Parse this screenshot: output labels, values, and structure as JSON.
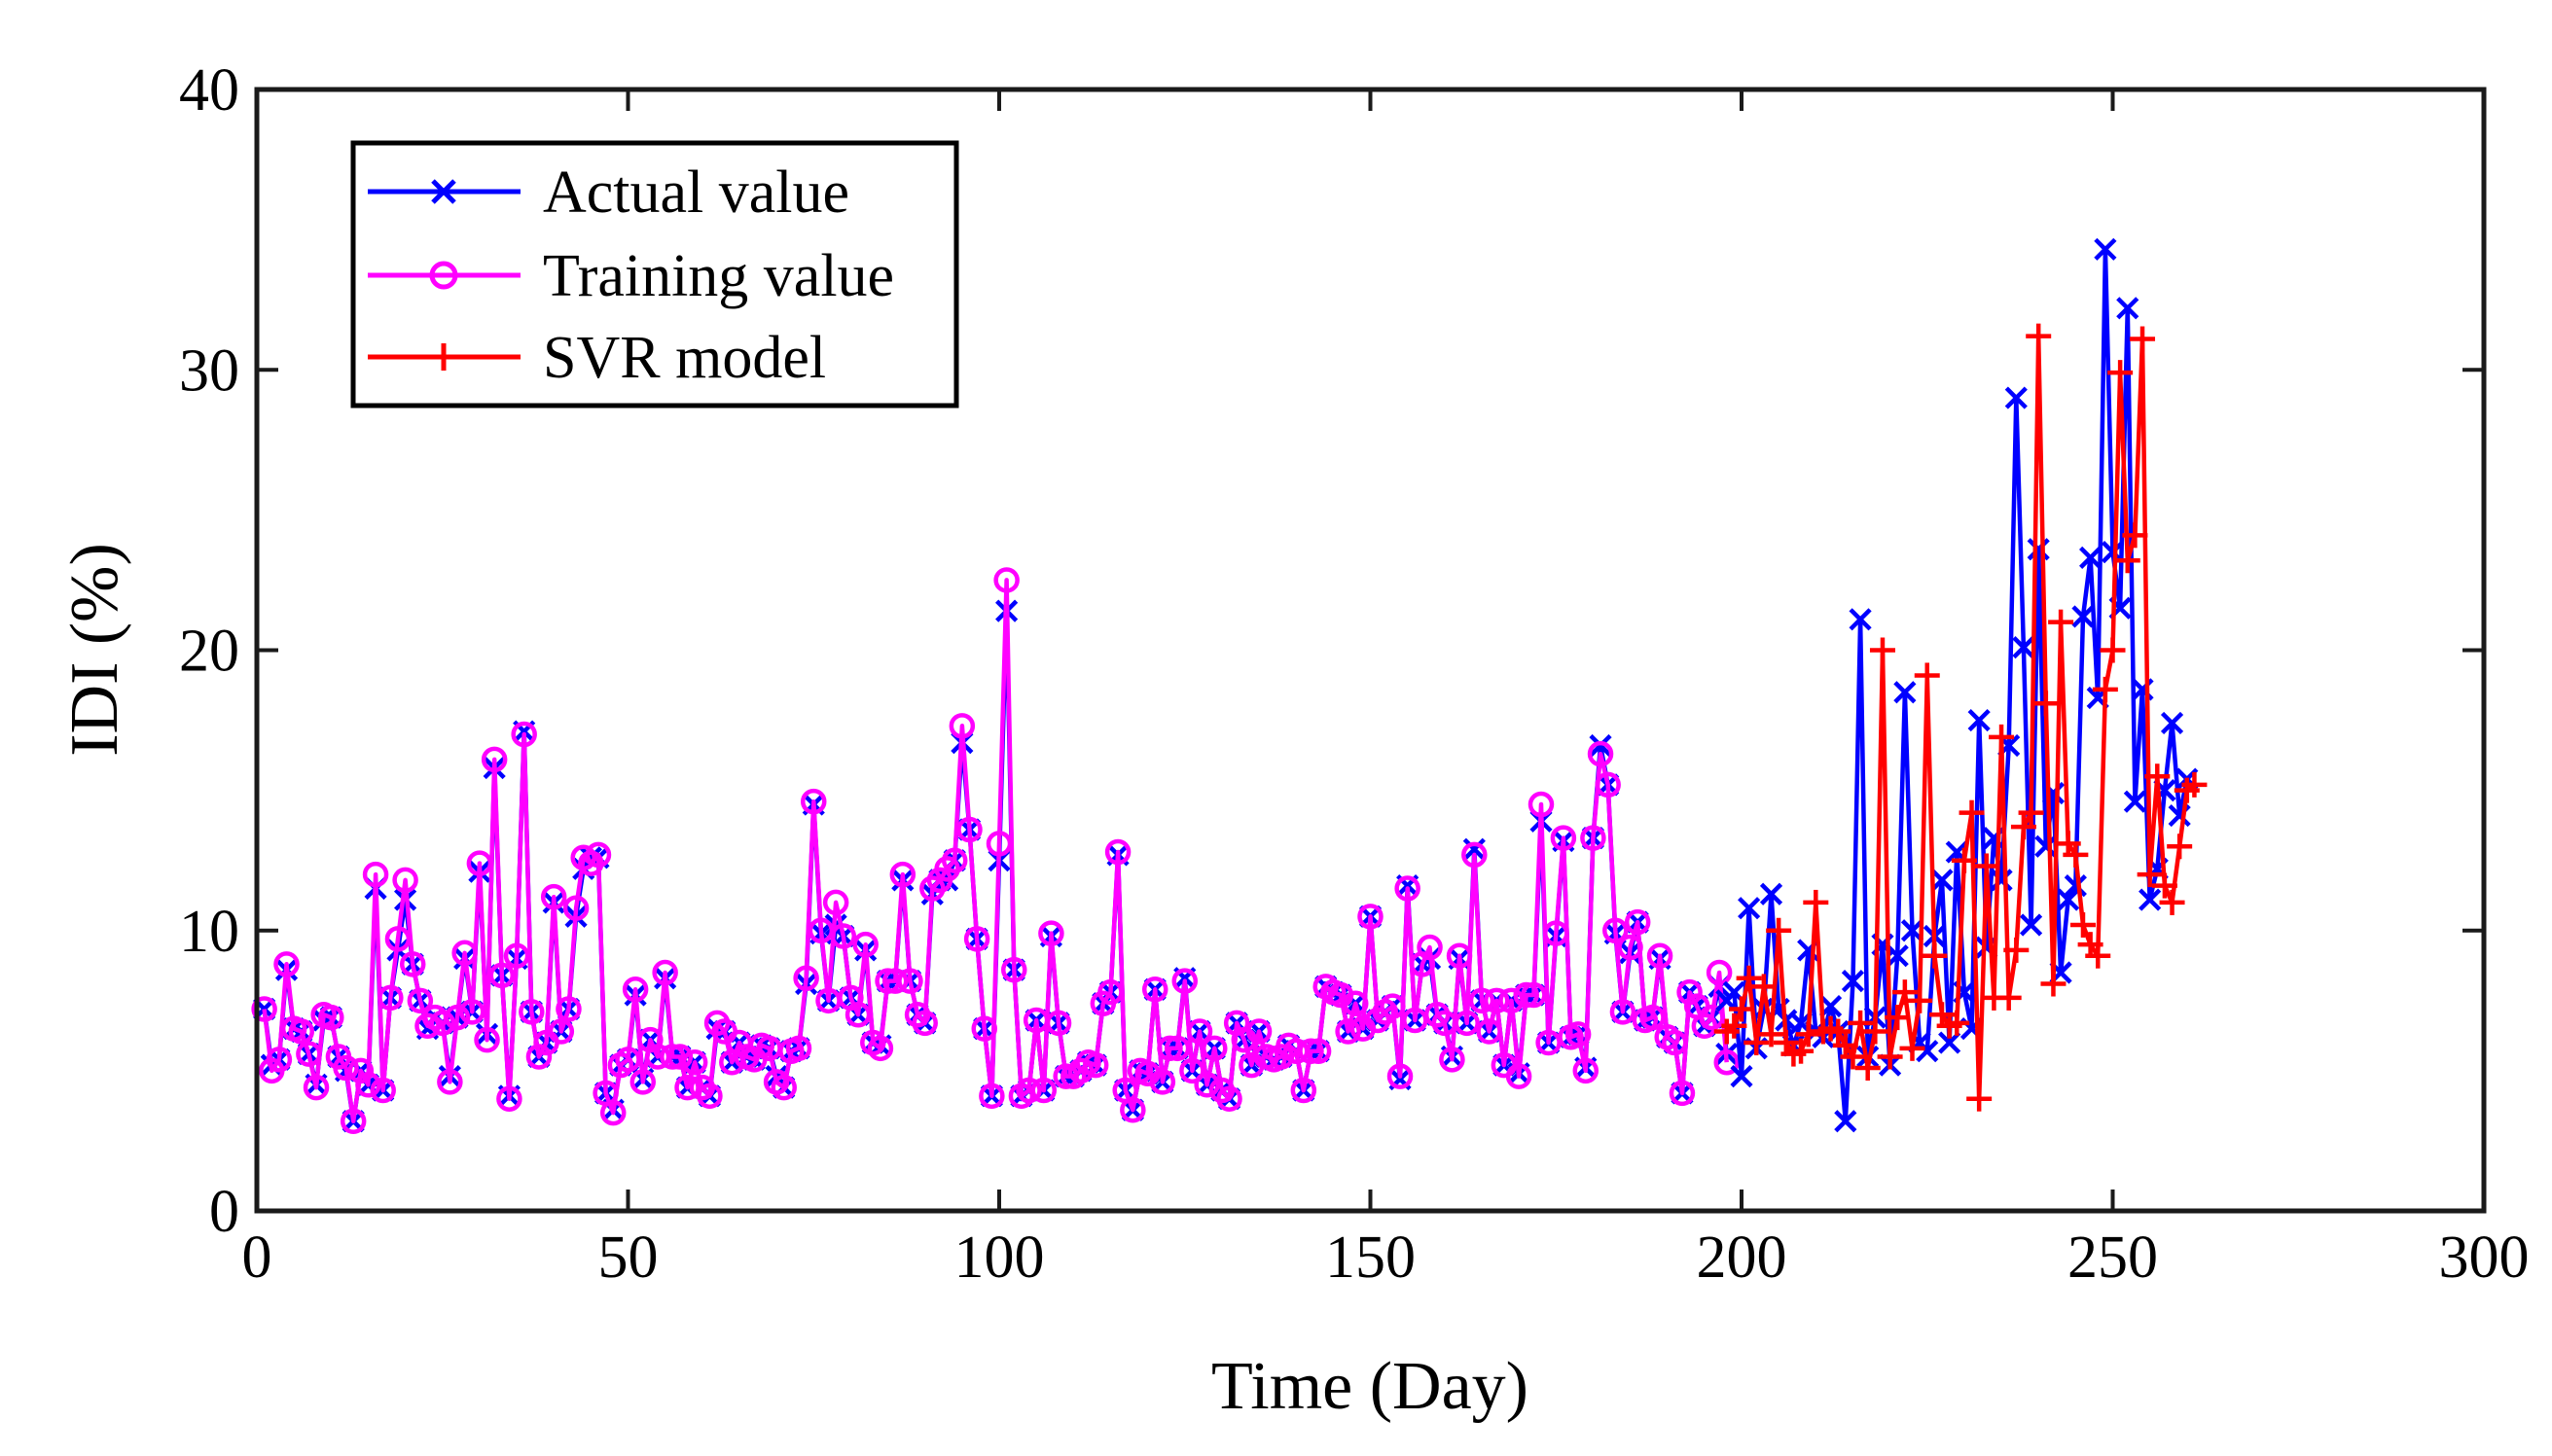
{
  "chart_data": {
    "type": "line",
    "xlabel": "Time (Day)",
    "ylabel": "IDI (%)",
    "xlim": [
      0,
      300
    ],
    "ylim": [
      0,
      40
    ],
    "xticks": [
      0,
      50,
      100,
      150,
      200,
      250,
      300
    ],
    "yticks": [
      0,
      10,
      20,
      30,
      40
    ],
    "legend_position": "top-left",
    "colors": {
      "actual": "#0000ff",
      "training": "#ff00ff",
      "svr": "#ff0000",
      "axes": "#1a1a1a"
    },
    "legend": {
      "actual": "Actual value",
      "training": "Training value",
      "svr": "SVR model"
    },
    "series": [
      {
        "name": "Actual value",
        "key": "actual",
        "marker": "x",
        "x_start": 1,
        "values": [
          7.2,
          5.2,
          5.4,
          8.6,
          6.5,
          6.4,
          5.6,
          4.5,
          6.8,
          6.9,
          5.5,
          5.0,
          3.2,
          5.0,
          4.5,
          11.5,
          4.3,
          7.6,
          9.3,
          11.1,
          8.8,
          7.5,
          6.5,
          6.9,
          6.7,
          4.8,
          6.9,
          9.0,
          7.1,
          12.1,
          6.3,
          15.8,
          8.4,
          4.1,
          9.0,
          17.1,
          7.1,
          5.5,
          6.0,
          11.0,
          6.4,
          7.2,
          10.5,
          12.2,
          12.6,
          12.6,
          4.2,
          3.6,
          5.2,
          5.4,
          7.7,
          4.7,
          6.1,
          5.5,
          8.3,
          5.5,
          5.5,
          4.4,
          5.3,
          4.4,
          4.1,
          6.5,
          6.4,
          5.3,
          6.0,
          5.5,
          5.4,
          5.9,
          5.8,
          4.8,
          4.4,
          5.7,
          5.8,
          8.1,
          14.5,
          9.9,
          7.5,
          10.2,
          9.8,
          7.6,
          7.0,
          9.3,
          6.0,
          5.9,
          8.2,
          8.2,
          11.8,
          8.2,
          7.0,
          6.7,
          11.3,
          11.8,
          11.8,
          12.5,
          16.7,
          13.6,
          9.7,
          6.5,
          4.1,
          12.5,
          21.4,
          8.6,
          4.1,
          4.3,
          6.8,
          4.3,
          9.8,
          6.7,
          4.8,
          4.8,
          5.0,
          5.3,
          5.2,
          7.4,
          7.8,
          12.7,
          4.3,
          3.6,
          5.0,
          4.9,
          7.9,
          4.6,
          5.8,
          5.8,
          8.3,
          5.0,
          6.4,
          4.5,
          5.8,
          4.3,
          4.0,
          6.7,
          6.1,
          5.2,
          6.4,
          5.5,
          5.4,
          5.5,
          5.9,
          5.7,
          4.3,
          5.7,
          5.7,
          8.0,
          7.8,
          7.7,
          6.4,
          7.4,
          6.5,
          10.5,
          6.8,
          7.1,
          7.3,
          4.7,
          11.6,
          6.8,
          8.8,
          9.0,
          7.0,
          6.7,
          5.5,
          9.0,
          6.7,
          12.9,
          7.5,
          6.4,
          7.5,
          5.2,
          7.5,
          4.9,
          7.7,
          7.7,
          13.9,
          6.0,
          9.8,
          13.2,
          6.2,
          6.3,
          5.1,
          13.3,
          16.6,
          15.2,
          9.9,
          7.1,
          9.2,
          10.3,
          6.8,
          6.9,
          9.0,
          6.2,
          6.0,
          4.2,
          7.8,
          7.3,
          6.6,
          6.9,
          8.0,
          5.6
        ]
      },
      {
        "name": "Training value",
        "key": "training",
        "marker": "o",
        "x_start": 1,
        "values": [
          7.2,
          5.0,
          5.4,
          8.8,
          6.5,
          6.4,
          5.6,
          4.4,
          7.0,
          6.9,
          5.5,
          5.1,
          3.2,
          5.0,
          4.5,
          12.0,
          4.3,
          7.6,
          9.7,
          11.8,
          8.8,
          7.5,
          6.6,
          6.9,
          6.7,
          4.6,
          6.9,
          9.2,
          7.1,
          12.4,
          6.1,
          16.1,
          8.4,
          4.0,
          9.1,
          17.0,
          7.1,
          5.5,
          6.0,
          11.2,
          6.4,
          7.2,
          10.8,
          12.6,
          12.4,
          12.7,
          4.2,
          3.5,
          5.2,
          5.4,
          7.9,
          4.6,
          6.1,
          5.5,
          8.5,
          5.5,
          5.5,
          4.4,
          5.3,
          4.4,
          4.1,
          6.7,
          6.4,
          5.3,
          6.0,
          5.5,
          5.4,
          5.9,
          5.8,
          4.6,
          4.4,
          5.7,
          5.8,
          8.3,
          14.6,
          10.0,
          7.5,
          11.0,
          9.8,
          7.6,
          7.0,
          9.5,
          6.0,
          5.8,
          8.2,
          8.2,
          12.0,
          8.2,
          7.0,
          6.7,
          11.5,
          11.8,
          12.2,
          12.5,
          17.3,
          13.6,
          9.7,
          6.5,
          4.1,
          13.1,
          22.5,
          8.6,
          4.1,
          4.3,
          6.8,
          4.3,
          9.9,
          6.7,
          4.8,
          4.8,
          5.0,
          5.3,
          5.2,
          7.4,
          7.8,
          12.8,
          4.3,
          3.6,
          5.0,
          4.9,
          7.9,
          4.6,
          5.8,
          5.8,
          8.2,
          5.0,
          6.4,
          4.5,
          5.8,
          4.3,
          4.0,
          6.7,
          6.1,
          5.2,
          6.4,
          5.5,
          5.4,
          5.5,
          5.9,
          5.7,
          4.3,
          5.7,
          5.7,
          8.0,
          7.8,
          7.7,
          6.4,
          7.4,
          6.5,
          10.5,
          6.8,
          7.1,
          7.3,
          4.8,
          11.5,
          6.8,
          8.8,
          9.4,
          7.0,
          6.7,
          5.4,
          9.1,
          6.7,
          12.7,
          7.5,
          6.4,
          7.5,
          5.2,
          7.5,
          4.8,
          7.7,
          7.7,
          14.5,
          6.0,
          9.9,
          13.3,
          6.2,
          6.3,
          5.0,
          13.3,
          16.3,
          15.2,
          10.0,
          7.1,
          9.4,
          10.3,
          6.8,
          6.9,
          9.1,
          6.2,
          6.0,
          4.2,
          7.8,
          7.3,
          6.6,
          6.9,
          8.5,
          5.3
        ]
      },
      {
        "name": "SVR model",
        "key": "svr",
        "marker": "+",
        "x_start": 198,
        "values": [
          6.4,
          6.6,
          7.2,
          8.3,
          6.0,
          8.0,
          6.3,
          10.0,
          6.0,
          5.6,
          5.7,
          6.3,
          11.0,
          6.4,
          6.5,
          6.4,
          5.9,
          5.5,
          6.7,
          5.1,
          6.4,
          20.0,
          5.5,
          6.9,
          7.8,
          5.8,
          7.5,
          19.1,
          9.1,
          7.0,
          6.6,
          6.7,
          12.5,
          14.2,
          4.0,
          12.3,
          7.6,
          16.9,
          7.6,
          9.3,
          13.7,
          14.2,
          31.2,
          18.1,
          8.1,
          21.0,
          13.1,
          12.7,
          10.2,
          9.5,
          9.1,
          18.6,
          20.0,
          29.9,
          23.2,
          24.1,
          31.1,
          12.0,
          15.5,
          11.6,
          11.0,
          13.0,
          15.0,
          15.2
        ]
      },
      {
        "name": "Actual value (test)",
        "key": "actual",
        "marker": "x",
        "x_start": 198,
        "values": [
          7.5,
          7.8,
          4.8,
          10.8,
          5.8,
          7.2,
          11.3,
          7.2,
          6.8,
          5.9,
          6.7,
          9.3,
          6.4,
          6.2,
          7.3,
          6.4,
          3.2,
          8.2,
          21.1,
          5.5,
          6.9,
          9.5,
          5.2,
          9.1,
          18.5,
          10.0,
          6.0,
          5.7,
          9.8,
          11.8,
          6.0,
          12.8,
          7.8,
          6.5,
          17.5,
          9.4,
          13.3,
          11.8,
          16.6,
          29.0,
          20.1,
          10.2,
          23.6,
          13.0,
          14.9,
          8.5,
          11.1,
          11.6,
          21.2,
          23.3,
          18.3,
          34.3,
          23.5,
          21.5,
          32.2,
          14.6,
          18.6,
          11.1,
          12.2,
          15.0,
          17.4,
          14.1,
          15.4
        ]
      }
    ]
  }
}
